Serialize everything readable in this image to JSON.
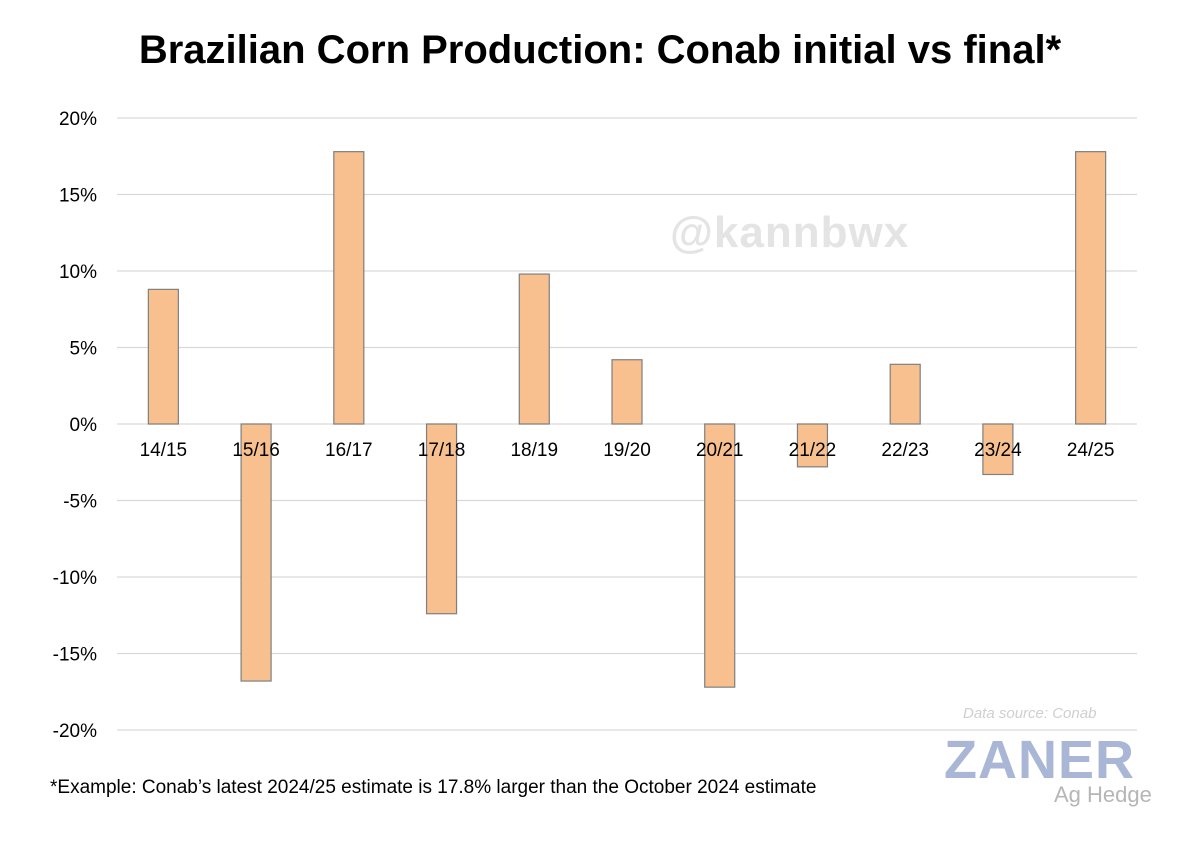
{
  "chart_data": {
    "type": "bar",
    "title": "Brazilian Corn Production: Conab initial vs final*",
    "categories": [
      "14/15",
      "15/16",
      "16/17",
      "17/18",
      "18/19",
      "19/20",
      "20/21",
      "21/22",
      "22/23",
      "23/24",
      "24/25"
    ],
    "values": [
      8.8,
      -16.8,
      17.8,
      -12.4,
      9.8,
      4.2,
      -17.2,
      -2.8,
      3.9,
      -3.3,
      17.8
    ],
    "ylim": [
      -20,
      20
    ],
    "yticks": [
      20,
      15,
      10,
      5,
      0,
      -5,
      -10,
      -15,
      -20
    ],
    "ytick_labels": [
      "20%",
      "15%",
      "10%",
      "5%",
      "0%",
      "-5%",
      "-10%",
      "-15%",
      "-20%"
    ],
    "xlabel": "",
    "ylabel": "",
    "grid": true,
    "bar_color": "#f9c08f",
    "bar_edge_color": "#7f7f7f"
  },
  "watermark": "@kannbwx",
  "source": "Data source: Conab",
  "logo": {
    "main": "ZANER",
    "sub": "Ag Hedge"
  },
  "footnote": "*Example: Conab’s latest 2024/25 estimate is 17.8% larger than the October 2024 estimate"
}
